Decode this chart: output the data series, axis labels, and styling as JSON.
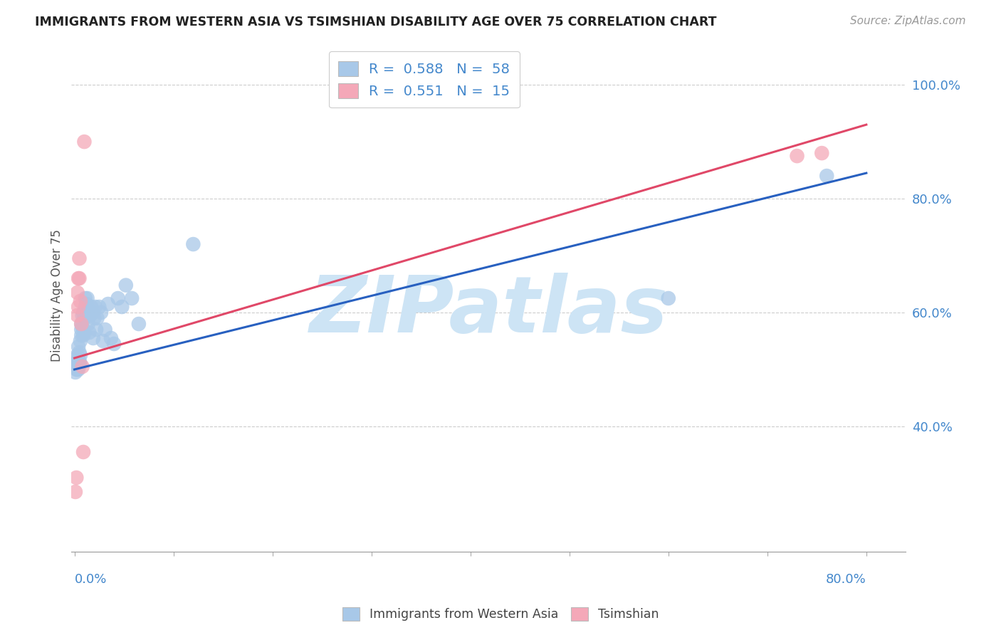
{
  "title": "IMMIGRANTS FROM WESTERN ASIA VS TSIMSHIAN DISABILITY AGE OVER 75 CORRELATION CHART",
  "source": "Source: ZipAtlas.com",
  "ylabel": "Disability Age Over 75",
  "legend_label_blue": "Immigrants from Western Asia",
  "legend_label_pink": "Tsimshian",
  "xlim": [
    -0.003,
    0.84
  ],
  "ylim": [
    0.18,
    1.08
  ],
  "ytick_values": [
    1.0,
    0.8,
    0.6,
    0.4
  ],
  "ytick_labels": [
    "100.0%",
    "80.0%",
    "60.0%",
    "40.0%"
  ],
  "r_blue": 0.588,
  "n_blue": 58,
  "r_pink": 0.551,
  "n_pink": 15,
  "blue_color": "#a8c8e8",
  "pink_color": "#f4a8b8",
  "blue_line_color": "#2860c0",
  "pink_line_color": "#e04868",
  "watermark": "ZIPatlas",
  "watermark_color": "#cde4f5",
  "blue_x": [
    0.001,
    0.001,
    0.002,
    0.002,
    0.002,
    0.003,
    0.003,
    0.003,
    0.003,
    0.004,
    0.004,
    0.004,
    0.005,
    0.005,
    0.005,
    0.006,
    0.006,
    0.006,
    0.007,
    0.007,
    0.007,
    0.008,
    0.008,
    0.009,
    0.009,
    0.01,
    0.01,
    0.011,
    0.011,
    0.012,
    0.012,
    0.013,
    0.013,
    0.014,
    0.015,
    0.016,
    0.017,
    0.018,
    0.019,
    0.02,
    0.021,
    0.022,
    0.023,
    0.025,
    0.027,
    0.029,
    0.031,
    0.034,
    0.037,
    0.04,
    0.044,
    0.048,
    0.052,
    0.058,
    0.065,
    0.12,
    0.6,
    0.76
  ],
  "blue_y": [
    0.505,
    0.495,
    0.51,
    0.5,
    0.52,
    0.5,
    0.505,
    0.515,
    0.525,
    0.5,
    0.51,
    0.54,
    0.51,
    0.515,
    0.53,
    0.51,
    0.525,
    0.55,
    0.56,
    0.57,
    0.58,
    0.575,
    0.595,
    0.56,
    0.6,
    0.565,
    0.59,
    0.61,
    0.625,
    0.595,
    0.615,
    0.6,
    0.625,
    0.58,
    0.565,
    0.595,
    0.61,
    0.6,
    0.555,
    0.59,
    0.61,
    0.57,
    0.59,
    0.61,
    0.6,
    0.55,
    0.57,
    0.615,
    0.555,
    0.545,
    0.625,
    0.61,
    0.648,
    0.625,
    0.58,
    0.72,
    0.625,
    0.84
  ],
  "pink_x": [
    0.001,
    0.002,
    0.003,
    0.003,
    0.004,
    0.004,
    0.005,
    0.005,
    0.006,
    0.007,
    0.008,
    0.009,
    0.01,
    0.73,
    0.755
  ],
  "pink_y": [
    0.285,
    0.31,
    0.595,
    0.635,
    0.66,
    0.61,
    0.695,
    0.66,
    0.62,
    0.58,
    0.505,
    0.355,
    0.9,
    0.875,
    0.88
  ],
  "blue_line_x0": 0.0,
  "blue_line_y0": 0.5,
  "blue_line_x1": 0.8,
  "blue_line_y1": 0.845,
  "pink_line_x0": 0.0,
  "pink_line_y0": 0.52,
  "pink_line_x1": 0.8,
  "pink_line_y1": 0.93
}
